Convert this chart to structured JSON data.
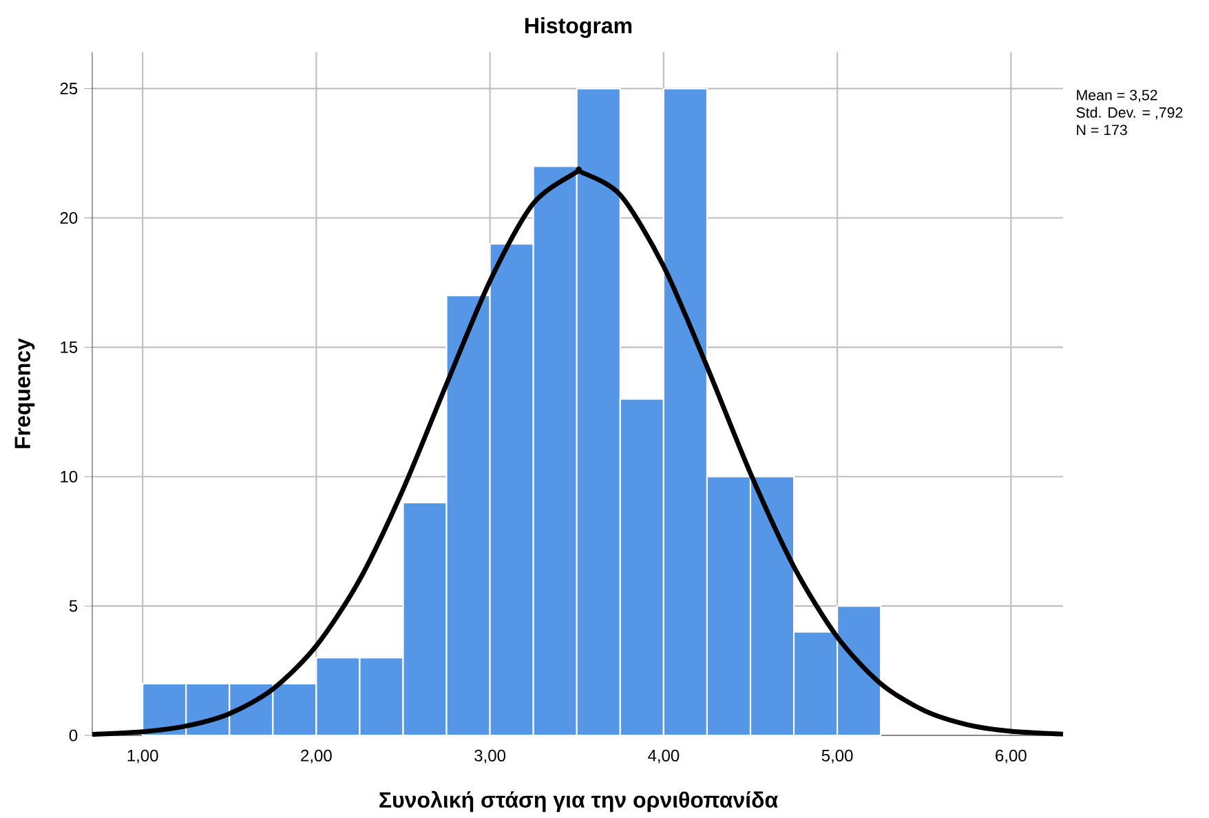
{
  "chart_data": {
    "type": "histogram",
    "title": "Histogram",
    "xlabel": "Συνολική στάση για την ορνιθοπανίδα",
    "ylabel": "Frequency",
    "bins": [
      1.0,
      1.25,
      1.5,
      1.75,
      2.0,
      2.25,
      2.5,
      2.75,
      3.0,
      3.25,
      3.5,
      3.75,
      4.0,
      4.25,
      4.5,
      4.75,
      5.0,
      5.25
    ],
    "values": [
      2,
      2,
      2,
      2,
      3,
      3,
      9,
      17,
      19,
      22,
      25,
      13,
      25,
      10,
      10,
      4,
      5
    ],
    "color": "#5596e6",
    "series": [
      {
        "type": "line",
        "color": "#000000",
        "x": [
          0.71,
          1.0,
          1.25,
          1.5,
          1.75,
          2.0,
          2.25,
          2.5,
          2.75,
          3.0,
          3.25,
          3.5,
          3.52,
          3.75,
          4.0,
          4.25,
          4.5,
          4.75,
          5.0,
          5.25,
          5.5,
          5.75,
          6.0,
          6.3
        ],
        "values": [
          0.04,
          0.14,
          0.36,
          0.84,
          1.79,
          3.46,
          6.02,
          9.51,
          13.58,
          17.56,
          20.56,
          21.78,
          21.79,
          20.89,
          18.13,
          14.25,
          10.13,
          6.52,
          3.8,
          2.0,
          0.96,
          0.41,
          0.16,
          0.05
        ]
      }
    ],
    "xlim": [
      0.71,
      6.3
    ],
    "ylim": [
      0,
      26.4
    ],
    "xticks": [
      {
        "value": 1,
        "label": "1,00"
      },
      {
        "value": 2,
        "label": "2,00"
      },
      {
        "value": 3,
        "label": "3,00"
      },
      {
        "value": 4,
        "label": "4,00"
      },
      {
        "value": 5,
        "label": "5,00"
      },
      {
        "value": 6,
        "label": "6,00"
      }
    ],
    "yticks": [
      0,
      5,
      10,
      15,
      20,
      25
    ],
    "grid": true,
    "marker": "none",
    "line_style": "solid",
    "annotations": [
      "Mean = 3,52",
      "Std. Dev. = ,792",
      "N = 173"
    ]
  }
}
